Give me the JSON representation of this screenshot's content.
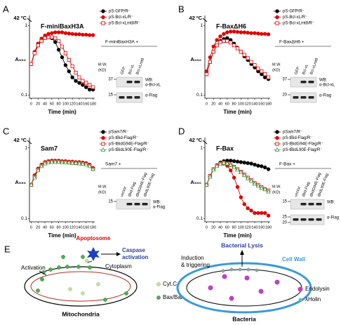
{
  "chart_data": [
    {
      "type": "line",
      "panel": "A",
      "title": "F-miniBaxH3A",
      "xlabel": "Time (min)",
      "ylabel": "A₅₅₀",
      "annotation": "42 ºC",
      "x": [
        0,
        10,
        20,
        30,
        40,
        50,
        60,
        70,
        80,
        90,
        100,
        110,
        120,
        130,
        140,
        150,
        160,
        170,
        180
      ],
      "xlim": [
        -5,
        185
      ],
      "xticks": [
        0,
        20,
        40,
        60,
        80,
        100,
        120,
        140,
        160,
        180
      ],
      "ylim": [
        0.09,
        1.4
      ],
      "yticks": [
        0.1,
        1
      ],
      "log_y": true,
      "series": [
        {
          "name": "pS-GFP/R⁻",
          "color": "#000000",
          "marker": "circle",
          "filled": true,
          "values": [
            0.28,
            0.4,
            0.52,
            0.6,
            0.66,
            0.68,
            0.66,
            0.58,
            0.45,
            0.35,
            0.27,
            0.22,
            0.18,
            0.16,
            0.15,
            0.14,
            0.13,
            0.12,
            0.12
          ]
        },
        {
          "name": "pS-Bcl-xL/R⁻",
          "color": "#e00000",
          "marker": "circle",
          "filled": true,
          "values": [
            0.28,
            0.42,
            0.55,
            0.65,
            0.72,
            0.76,
            0.78,
            0.8,
            0.8,
            0.8,
            0.78,
            0.77,
            0.76,
            0.75,
            0.75,
            0.74,
            0.74,
            0.73,
            0.73
          ]
        },
        {
          "name": "pS-Bcl-xLmt8/R⁻",
          "color": "#e00000",
          "marker": "square",
          "filled": false,
          "values": [
            0.28,
            0.4,
            0.52,
            0.6,
            0.66,
            0.68,
            0.68,
            0.66,
            0.6,
            0.5,
            0.4,
            0.32,
            0.26,
            0.21,
            0.18,
            0.16,
            0.15,
            0.14,
            0.13
          ]
        }
      ],
      "blot": {
        "title": "F-miniBaxH3A +",
        "lanes": [
          "GFP",
          "Bcl-xL",
          "Bcl-xLmt8"
        ],
        "mw_title": [
          "M.W.",
          "(KD)"
        ],
        "rows": [
          {
            "mw": [
              "37"
            ],
            "labels": [
              "WB:",
              "α-Bcl-xL"
            ]
          },
          {
            "mw": [
              "15"
            ],
            "labels": [
              "α-Flag"
            ]
          }
        ]
      }
    },
    {
      "type": "line",
      "panel": "B",
      "title": "F-BaxΔH6",
      "xlabel": "Time (min)",
      "ylabel": "A₅₅₀",
      "annotation": "42 ºC",
      "x": [
        0,
        10,
        20,
        30,
        40,
        50,
        60,
        70,
        80,
        90,
        100,
        110,
        120,
        130,
        140,
        150,
        160,
        170,
        180
      ],
      "xlim": [
        -5,
        185
      ],
      "xticks": [
        0,
        20,
        40,
        60,
        80,
        100,
        120,
        140,
        160,
        180
      ],
      "ylim": [
        0.09,
        1.4
      ],
      "yticks": [
        0.1,
        1
      ],
      "log_y": true,
      "series": [
        {
          "name": "pS-GFP/R⁻",
          "color": "#000000",
          "marker": "circle",
          "filled": true,
          "values": [
            0.2,
            0.3,
            0.42,
            0.52,
            0.6,
            0.64,
            0.66,
            0.62,
            0.55,
            0.48,
            0.42,
            0.36,
            0.32,
            0.28,
            0.25,
            0.22,
            0.2,
            0.18,
            0.17
          ]
        },
        {
          "name": "pS-Bcl-xL/R⁻",
          "color": "#e00000",
          "marker": "circle",
          "filled": true,
          "values": [
            0.22,
            0.35,
            0.5,
            0.62,
            0.7,
            0.76,
            0.8,
            0.82,
            0.82,
            0.81,
            0.8,
            0.8,
            0.79,
            0.78,
            0.78,
            0.77,
            0.76,
            0.76,
            0.75
          ]
        },
        {
          "name": "pS-Bcl-xLmt8/R⁻",
          "color": "#e00000",
          "marker": "square",
          "filled": false,
          "values": [
            0.2,
            0.3,
            0.42,
            0.52,
            0.58,
            0.6,
            0.6,
            0.57,
            0.52,
            0.47,
            0.42,
            0.38,
            0.34,
            0.3,
            0.27,
            0.24,
            0.22,
            0.2,
            0.18
          ]
        }
      ],
      "blot": {
        "title": "F-BaxΔH6 +",
        "lanes": [
          "GFP",
          "Bcl-xL",
          "Bcl-xLmt8"
        ],
        "mw_title": [
          "M.W.",
          "(KD)"
        ],
        "rows": [
          {
            "mw": [
              "37"
            ],
            "labels": [
              "WB:",
              "α-Bcl-xL"
            ]
          },
          {
            "mw": [
              "20"
            ],
            "labels": [
              "α-Flag"
            ]
          }
        ]
      }
    },
    {
      "type": "line",
      "panel": "C",
      "title": "Sam7",
      "xlabel": "Time (min)",
      "ylabel": "A₅₅₀",
      "annotation": "42 ºC",
      "x": [
        0,
        10,
        20,
        30,
        40,
        50,
        60,
        70,
        80,
        90,
        100,
        110,
        120,
        130,
        140,
        150,
        160,
        170,
        180
      ],
      "xlim": [
        -5,
        185
      ],
      "xticks": [
        0,
        20,
        40,
        60,
        80,
        100,
        120,
        140,
        160,
        180
      ],
      "ylim": [
        0.09,
        1.4
      ],
      "yticks": [
        0.1,
        1
      ],
      "log_y": true,
      "series": [
        {
          "name": "pSam7/R⁻",
          "color": "#000000",
          "marker": "circle",
          "filled": true,
          "values": [
            0.3,
            0.4,
            0.5,
            0.57,
            0.62,
            0.64,
            0.65,
            0.65,
            0.65,
            0.64,
            0.64,
            0.63,
            0.63,
            0.62,
            0.62,
            0.61,
            0.6,
            0.58,
            0.52
          ]
        },
        {
          "name": "pS-tBid-Flag/R⁻",
          "color": "#e00000",
          "marker": "circle",
          "filled": true,
          "values": [
            0.3,
            0.41,
            0.51,
            0.58,
            0.63,
            0.65,
            0.66,
            0.66,
            0.66,
            0.65,
            0.65,
            0.64,
            0.64,
            0.63,
            0.63,
            0.62,
            0.61,
            0.58,
            0.52
          ]
        },
        {
          "name": "pS-tBidG94E-Flag/R⁻",
          "color": "#e00000",
          "marker": "square",
          "filled": false,
          "values": [
            0.3,
            0.39,
            0.49,
            0.56,
            0.61,
            0.63,
            0.64,
            0.64,
            0.64,
            0.63,
            0.63,
            0.62,
            0.62,
            0.61,
            0.61,
            0.6,
            0.59,
            0.56,
            0.5
          ]
        },
        {
          "name": "pS-tBidL90E-Flag/R⁻",
          "color": "#3a9a3a",
          "marker": "triangle",
          "filled": false,
          "values": [
            0.3,
            0.38,
            0.48,
            0.55,
            0.6,
            0.62,
            0.63,
            0.63,
            0.63,
            0.62,
            0.62,
            0.62,
            0.61,
            0.61,
            0.6,
            0.59,
            0.58,
            0.55,
            0.5
          ]
        }
      ],
      "blot": {
        "title": "Sam7 +",
        "lanes": [
          "vector",
          "tBid-Flag",
          "tBidG94E-Flag",
          "tBidL90E-Flag"
        ],
        "mw_title": [
          "M.W.",
          "(KD)"
        ],
        "rows": [
          {
            "mw": [
              "15"
            ],
            "labels": [
              "WB:",
              "α-Flag"
            ]
          }
        ]
      }
    },
    {
      "type": "line",
      "panel": "D",
      "title": "F-Bax",
      "xlabel": "Time (min)",
      "ylabel": "A₅₅₀",
      "annotation": "42 ºC",
      "x": [
        0,
        10,
        20,
        30,
        40,
        50,
        60,
        70,
        80,
        90,
        100,
        110,
        120,
        130,
        140,
        150,
        160,
        170,
        180
      ],
      "xlim": [
        -5,
        185
      ],
      "xticks": [
        0,
        20,
        40,
        60,
        80,
        100,
        120,
        140,
        160,
        180
      ],
      "ylim": [
        0.09,
        1.4
      ],
      "yticks": [
        0.1,
        1
      ],
      "log_y": true,
      "series": [
        {
          "name": "pSam7/R⁻",
          "color": "#000000",
          "marker": "circle",
          "filled": true,
          "values": [
            0.3,
            0.4,
            0.5,
            0.57,
            0.62,
            0.65,
            0.66,
            0.66,
            0.65,
            0.64,
            0.63,
            0.62,
            0.61,
            0.6,
            0.58,
            0.56,
            0.55,
            0.53,
            0.5
          ]
        },
        {
          "name": "pS-tBid-Flag/R⁻",
          "color": "#e00000",
          "marker": "circle",
          "filled": true,
          "values": [
            0.3,
            0.4,
            0.5,
            0.56,
            0.6,
            0.6,
            0.56,
            0.48,
            0.38,
            0.28,
            0.2,
            0.16,
            0.14,
            0.13,
            0.12,
            0.12,
            0.12,
            0.12,
            0.11
          ]
        },
        {
          "name": "pS-tBidG94E-Flag/R⁻",
          "color": "#e00000",
          "marker": "square",
          "filled": false,
          "values": [
            0.3,
            0.4,
            0.5,
            0.56,
            0.6,
            0.62,
            0.6,
            0.57,
            0.54,
            0.5,
            0.46,
            0.42,
            0.38,
            0.35,
            0.32,
            0.3,
            0.28,
            0.26,
            0.25
          ]
        },
        {
          "name": "pS-tBidL90E-Flag/R⁻",
          "color": "#3a9a3a",
          "marker": "triangle",
          "filled": false,
          "values": [
            0.3,
            0.39,
            0.49,
            0.55,
            0.59,
            0.61,
            0.6,
            0.57,
            0.53,
            0.49,
            0.45,
            0.41,
            0.37,
            0.34,
            0.31,
            0.29,
            0.27,
            0.26,
            0.24
          ]
        }
      ],
      "blot": {
        "title": "F-Bax +",
        "lanes": [
          "vector",
          "tBid-Flag",
          "tBidG94E-Flag",
          "tBidL90E-Flag"
        ],
        "mw_title": [
          "M.W.",
          "(KD)"
        ],
        "rows": [
          {
            "mw": [
              "15"
            ],
            "labels": [
              "WB:"
            ]
          },
          {
            "mw": [
              "25",
              "20"
            ],
            "labels": [
              "α-Flag"
            ]
          }
        ]
      }
    }
  ],
  "diagram": {
    "panel": "E",
    "apoptosome": "Apoptosome",
    "caspase": [
      "Caspase",
      "activation"
    ],
    "activation": "Activation",
    "cytoplasm": "Cytoplasm",
    "cytc": "Cyt.C",
    "baxbak": "Bax/Bak",
    "mitochondria": "Mitochondria",
    "lysis": "Bacterial Lysis",
    "induction": [
      "Induction",
      "& triggering"
    ],
    "cellwall": "Cell Wall",
    "endolysin": "Endolysin",
    "holin": "λHolin",
    "bacteria": "Bacteria"
  }
}
